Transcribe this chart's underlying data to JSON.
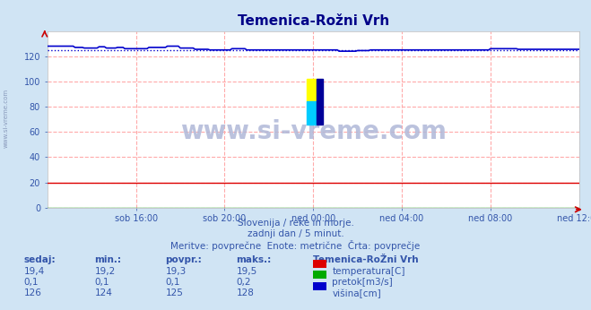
{
  "title": "Temenica-Rožni Vrh",
  "bg_color": "#d0e4f4",
  "plot_bg_color": "#ffffff",
  "grid_color": "#ffaaaa",
  "grid_style": "--",
  "x_tick_labels": [
    "sob 16:00",
    "sob 20:00",
    "ned 00:00",
    "ned 04:00",
    "ned 08:00",
    "ned 12:00"
  ],
  "ylim": [
    0,
    140
  ],
  "yticks": [
    0,
    20,
    40,
    60,
    80,
    100,
    120
  ],
  "temp_color": "#dd0000",
  "pretok_color": "#00aa00",
  "visina_color": "#0000cc",
  "subtitle1": "Slovenija / reke in morje.",
  "subtitle2": "zadnji dan / 5 minut.",
  "subtitle3": "Meritve: povprečne  Enote: metrične  Črta: povprečje",
  "table_header": [
    "sedaj:",
    "min.:",
    "povpr.:",
    "maks.:",
    "Temenica-RoŽni Vrh"
  ],
  "row1": [
    "19,4",
    "19,2",
    "19,3",
    "19,5"
  ],
  "row2": [
    "0,1",
    "0,1",
    "0,1",
    "0,2"
  ],
  "row3": [
    "126",
    "124",
    "125",
    "128"
  ],
  "legend_labels": [
    "temperatura[C]",
    "pretok[m3/s]",
    "višina[cm]"
  ],
  "legend_colors": [
    "#dd0000",
    "#00aa00",
    "#0000cc"
  ],
  "watermark_text": "www.si-vreme.com",
  "watermark_color": "#b0b8d8",
  "side_text": "www.si-vreme.com",
  "side_color": "#8899bb",
  "arrow_color": "#cc0000",
  "text_color": "#3355aa",
  "n_points": 289,
  "logo_yellow": "#ffff00",
  "logo_cyan": "#00ccff",
  "logo_blue": "#000099"
}
